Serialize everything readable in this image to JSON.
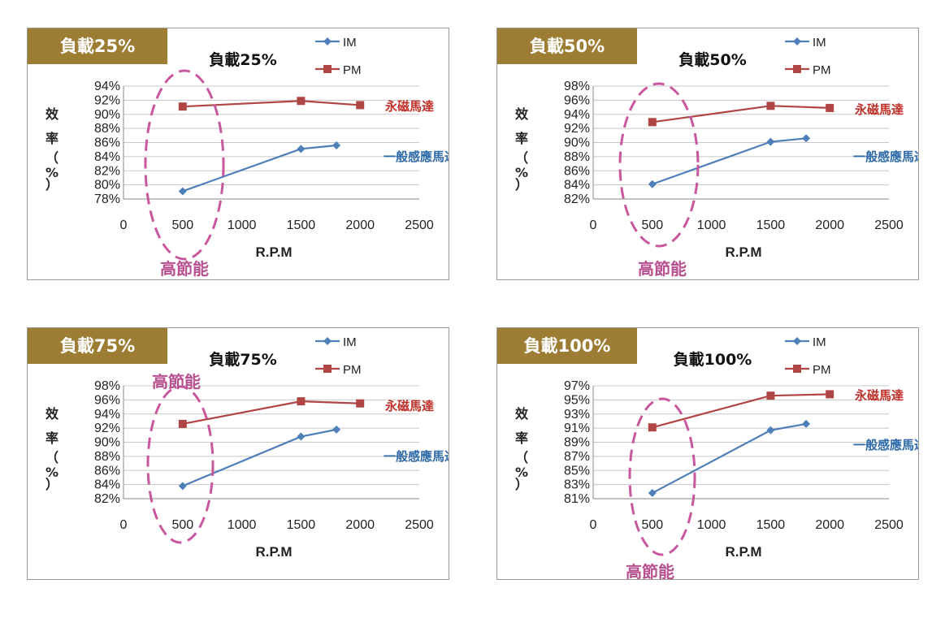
{
  "colors": {
    "im": "#4f7fb8",
    "pm": "#b04545",
    "badge": "#9c7d33",
    "highlight": "#c9579e",
    "pm_note": "#c0302a",
    "im_note": "#2e6aa8"
  },
  "annotations": {
    "pm_note": "永磁馬達",
    "im_note": "一般感應馬達",
    "energy_saving": "高節能"
  },
  "chart_data": [
    {
      "type": "line",
      "badge": "負載25%",
      "title": "負載25%",
      "xlabel": "R.P.M",
      "ylabel": "效率（%）",
      "xlim": [
        0,
        2500
      ],
      "xticks": [
        0,
        500,
        1000,
        1500,
        2000,
        2500
      ],
      "ylim": [
        78,
        94
      ],
      "yticks": [
        "78%",
        "80%",
        "82%",
        "84%",
        "86%",
        "88%",
        "90%",
        "92%",
        "94%"
      ],
      "grid": true,
      "legend_position": "top-right",
      "series": [
        {
          "name": "IM",
          "marker": "diamond",
          "x": [
            500,
            1500,
            1800
          ],
          "y": [
            79.1,
            85.1,
            85.6
          ]
        },
        {
          "name": "PM",
          "marker": "square",
          "x": [
            500,
            1500,
            2000
          ],
          "y": [
            91.1,
            91.9,
            91.3
          ]
        }
      ]
    },
    {
      "type": "line",
      "badge": "負載50%",
      "title": "負載50%",
      "xlabel": "R.P.M",
      "ylabel": "效率（%）",
      "xlim": [
        0,
        2500
      ],
      "xticks": [
        0,
        500,
        1000,
        1500,
        2000,
        2500
      ],
      "ylim": [
        82,
        98
      ],
      "yticks": [
        "82%",
        "84%",
        "86%",
        "88%",
        "90%",
        "92%",
        "94%",
        "96%",
        "98%"
      ],
      "grid": true,
      "legend_position": "top-right",
      "series": [
        {
          "name": "IM",
          "marker": "diamond",
          "x": [
            500,
            1500,
            1800
          ],
          "y": [
            84.1,
            90.1,
            90.6
          ]
        },
        {
          "name": "PM",
          "marker": "square",
          "x": [
            500,
            1500,
            2000
          ],
          "y": [
            92.9,
            95.2,
            94.9
          ]
        }
      ]
    },
    {
      "type": "line",
      "badge": "負載75%",
      "title": "負載75%",
      "xlabel": "R.P.M",
      "ylabel": "效率（%）",
      "xlim": [
        0,
        2500
      ],
      "xticks": [
        0,
        500,
        1000,
        1500,
        2000,
        2500
      ],
      "ylim": [
        82,
        98
      ],
      "yticks": [
        "82%",
        "84%",
        "86%",
        "88%",
        "90%",
        "92%",
        "94%",
        "96%",
        "98%"
      ],
      "grid": true,
      "legend_position": "top-right",
      "series": [
        {
          "name": "IM",
          "marker": "diamond",
          "x": [
            500,
            1500,
            1800
          ],
          "y": [
            83.8,
            90.8,
            91.8
          ]
        },
        {
          "name": "PM",
          "marker": "square",
          "x": [
            500,
            1500,
            2000
          ],
          "y": [
            92.6,
            95.8,
            95.5
          ]
        }
      ]
    },
    {
      "type": "line",
      "badge": "負載100%",
      "title": "負載100%",
      "xlabel": "R.P.M",
      "ylabel": "效率（%）",
      "xlim": [
        0,
        2500
      ],
      "xticks": [
        0,
        500,
        1000,
        1500,
        2000,
        2500
      ],
      "ylim": [
        81,
        97
      ],
      "yticks": [
        "81%",
        "83%",
        "85%",
        "87%",
        "89%",
        "91%",
        "93%",
        "95%",
        "97%"
      ],
      "grid": true,
      "legend_position": "top-right",
      "series": [
        {
          "name": "IM",
          "marker": "diamond",
          "x": [
            500,
            1500,
            1800
          ],
          "y": [
            81.8,
            90.7,
            91.6
          ]
        },
        {
          "name": "PM",
          "marker": "square",
          "x": [
            500,
            1500,
            2000
          ],
          "y": [
            91.1,
            95.6,
            95.8
          ]
        }
      ]
    }
  ]
}
